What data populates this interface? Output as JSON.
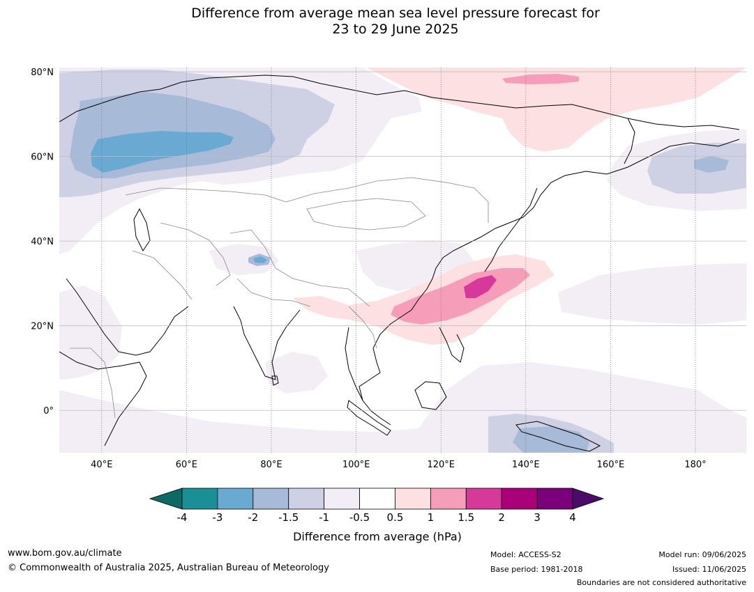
{
  "title": {
    "line1": "Difference from average mean sea level pressure forecast for",
    "line2": "23 to 29 June 2025"
  },
  "map": {
    "lat_labels": [
      "80°N",
      "60°N",
      "40°N",
      "20°N",
      "0°"
    ],
    "lon_labels": [
      "40°E",
      "60°E",
      "80°E",
      "100°E",
      "120°E",
      "140°E",
      "160°E",
      "180°"
    ],
    "extent": {
      "lon": [
        30,
        192
      ],
      "lat": [
        -10,
        81
      ]
    }
  },
  "colorbar": {
    "ticks": [
      "-4",
      "-3",
      "-2",
      "-1.5",
      "-1",
      "-0.5",
      "0.5",
      "1",
      "1.5",
      "2",
      "3",
      "4"
    ],
    "colors": [
      "#1b8f96",
      "#6aaad2",
      "#a7bad8",
      "#ced1e4",
      "#f3eef6",
      "#ffffff",
      "#fde0e1",
      "#f69eb9",
      "#d6399a",
      "#aa017b",
      "#7a017b"
    ],
    "under_color": "#0b6a64",
    "over_color": "#4a0c69",
    "label": "Difference from average (hPa)"
  },
  "footer": {
    "website": "www.bom.gov.au/climate",
    "copyright": "© Commonwealth of Australia 2025, Australian Bureau of Meteorology",
    "model": "Model: ACCESS-S2",
    "base_period": "Base period: 1981-2018",
    "model_run": "Model run: 09/06/2025",
    "issued": "Issued: 11/06/2025",
    "disclaimer": "Boundaries are not considered authoritative"
  }
}
